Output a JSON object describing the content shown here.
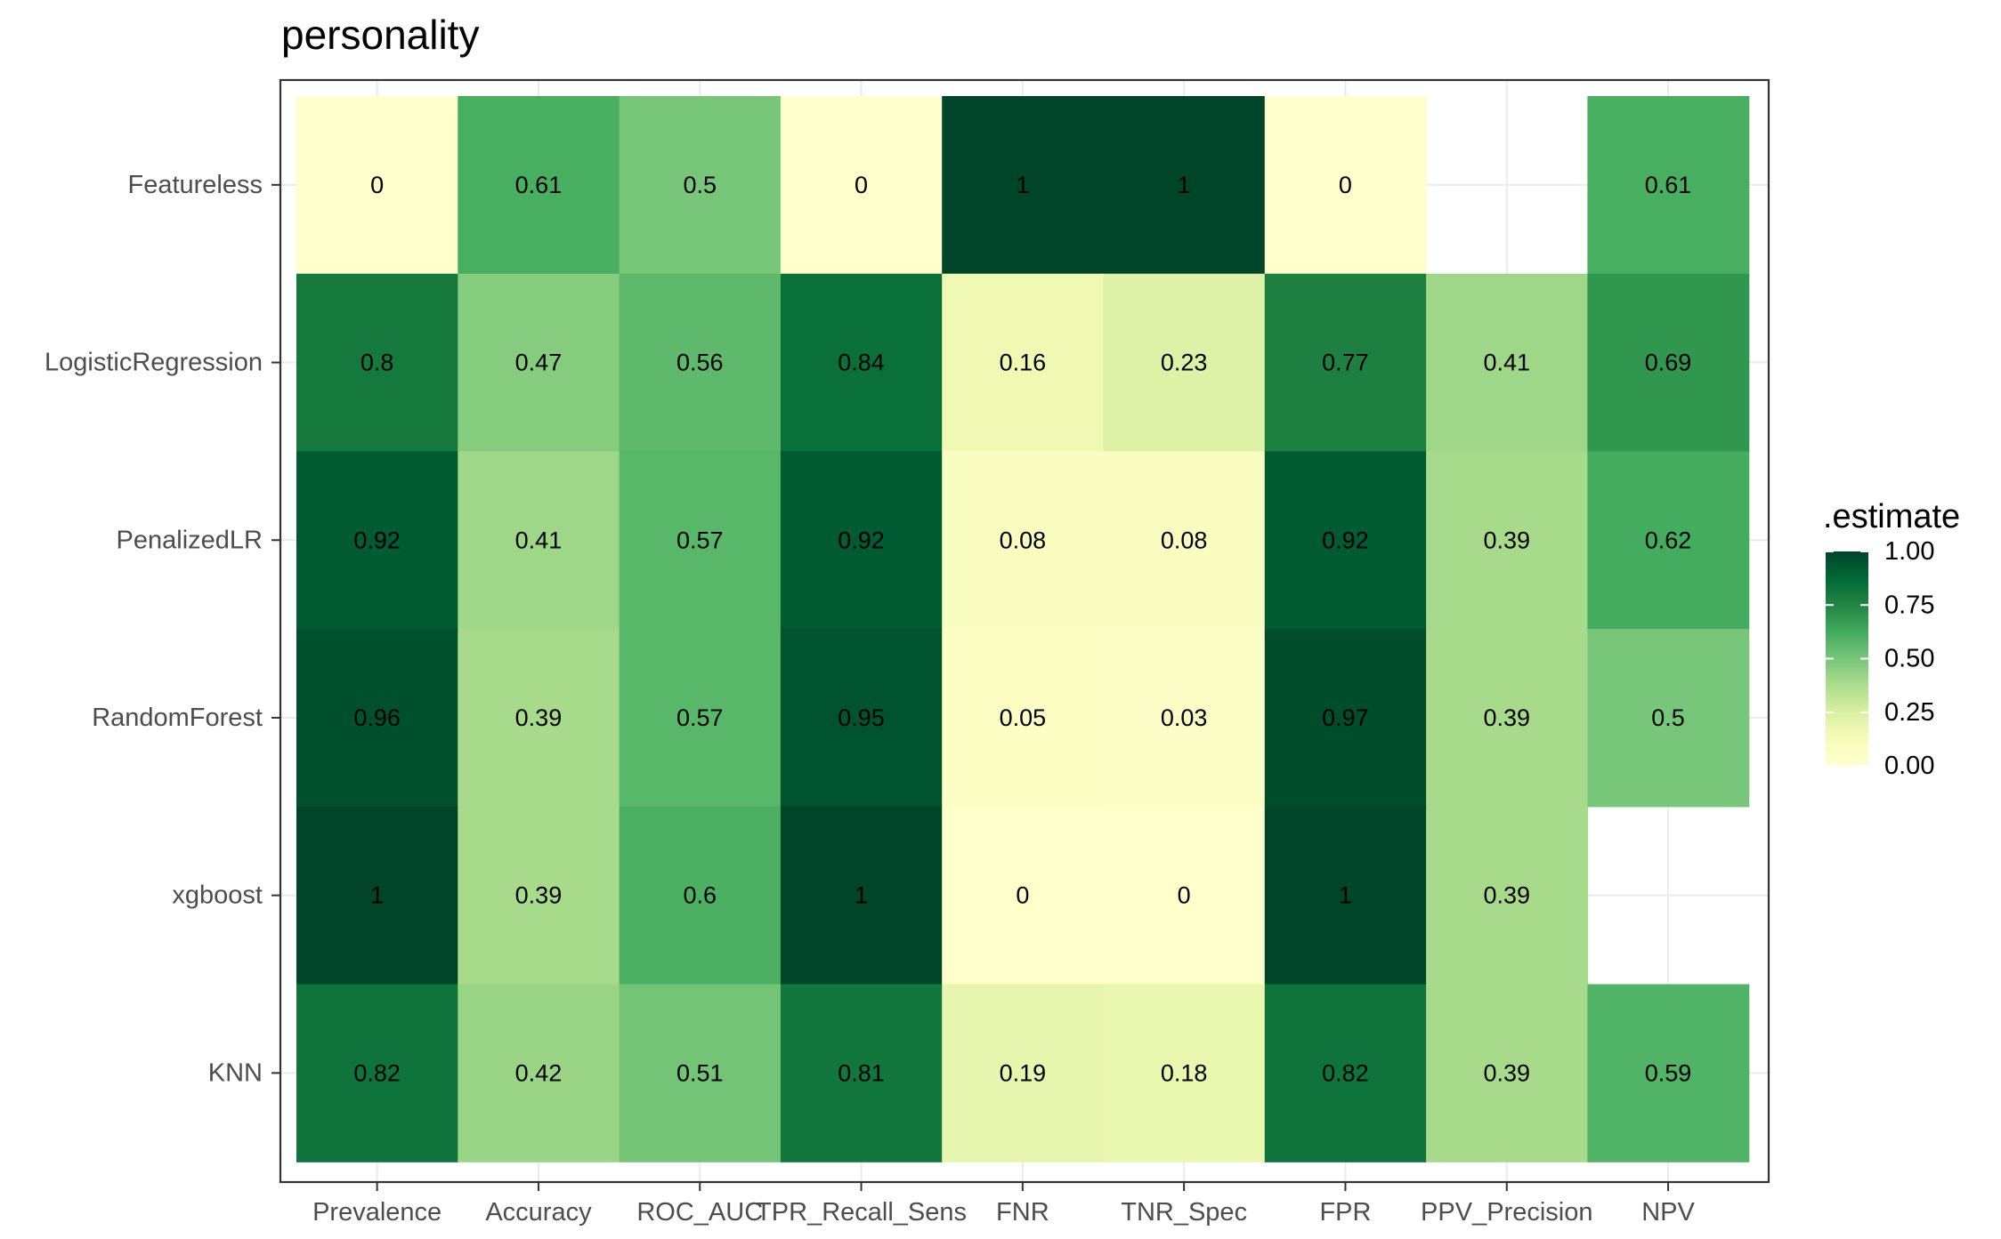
{
  "chart_data": {
    "type": "heatmap",
    "title": "personality",
    "xlabel": "",
    "ylabel": "",
    "x_categories": [
      "Prevalence",
      "Accuracy",
      "ROC_AUC",
      "TPR_Recall_Sens",
      "FNR",
      "TNR_Spec",
      "FPR",
      "PPV_Precision",
      "NPV"
    ],
    "y_categories": [
      "Featureless",
      "LogisticRegression",
      "PenalizedLR",
      "RandomForest",
      "xgboost",
      "KNN"
    ],
    "values": [
      [
        0,
        0.61,
        0.5,
        0,
        1,
        1,
        0,
        null,
        0.61
      ],
      [
        0.8,
        0.47,
        0.56,
        0.84,
        0.16,
        0.23,
        0.77,
        0.41,
        0.69
      ],
      [
        0.92,
        0.41,
        0.57,
        0.92,
        0.08,
        0.08,
        0.92,
        0.39,
        0.62
      ],
      [
        0.96,
        0.39,
        0.57,
        0.95,
        0.05,
        0.03,
        0.97,
        0.39,
        0.5
      ],
      [
        1,
        0.39,
        0.6,
        1,
        0,
        0,
        1,
        0.39,
        null
      ],
      [
        0.82,
        0.42,
        0.51,
        0.81,
        0.19,
        0.18,
        0.82,
        0.39,
        0.59
      ]
    ],
    "labels": [
      [
        "0",
        "0.61",
        "0.5",
        "0",
        "1",
        "1",
        "0",
        "",
        "0.61"
      ],
      [
        "0.8",
        "0.47",
        "0.56",
        "0.84",
        "0.16",
        "0.23",
        "0.77",
        "0.41",
        "0.69"
      ],
      [
        "0.92",
        "0.41",
        "0.57",
        "0.92",
        "0.08",
        "0.08",
        "0.92",
        "0.39",
        "0.62"
      ],
      [
        "0.96",
        "0.39",
        "0.57",
        "0.95",
        "0.05",
        "0.03",
        "0.97",
        "0.39",
        "0.5"
      ],
      [
        "1",
        "0.39",
        "0.6",
        "1",
        "0",
        "0",
        "1",
        "0.39",
        ""
      ],
      [
        "0.82",
        "0.42",
        "0.51",
        "0.81",
        "0.19",
        "0.18",
        "0.82",
        "0.39",
        "0.59"
      ]
    ],
    "color_scale": {
      "name": "YlGn",
      "domain": [
        0,
        1
      ],
      "stops": [
        "#ffffcc",
        "#f7fcb9",
        "#d9f0a3",
        "#addd8e",
        "#78c679",
        "#41ab5d",
        "#238443",
        "#006837",
        "#004529"
      ]
    },
    "legend": {
      "title": ".estimate",
      "placement": "right",
      "breaks": [
        1.0,
        0.75,
        0.5,
        0.25,
        0.0
      ],
      "break_labels": [
        "1.00",
        "0.75",
        "0.50",
        "0.25",
        "0.00"
      ]
    },
    "grid": true,
    "panel_border": true
  }
}
